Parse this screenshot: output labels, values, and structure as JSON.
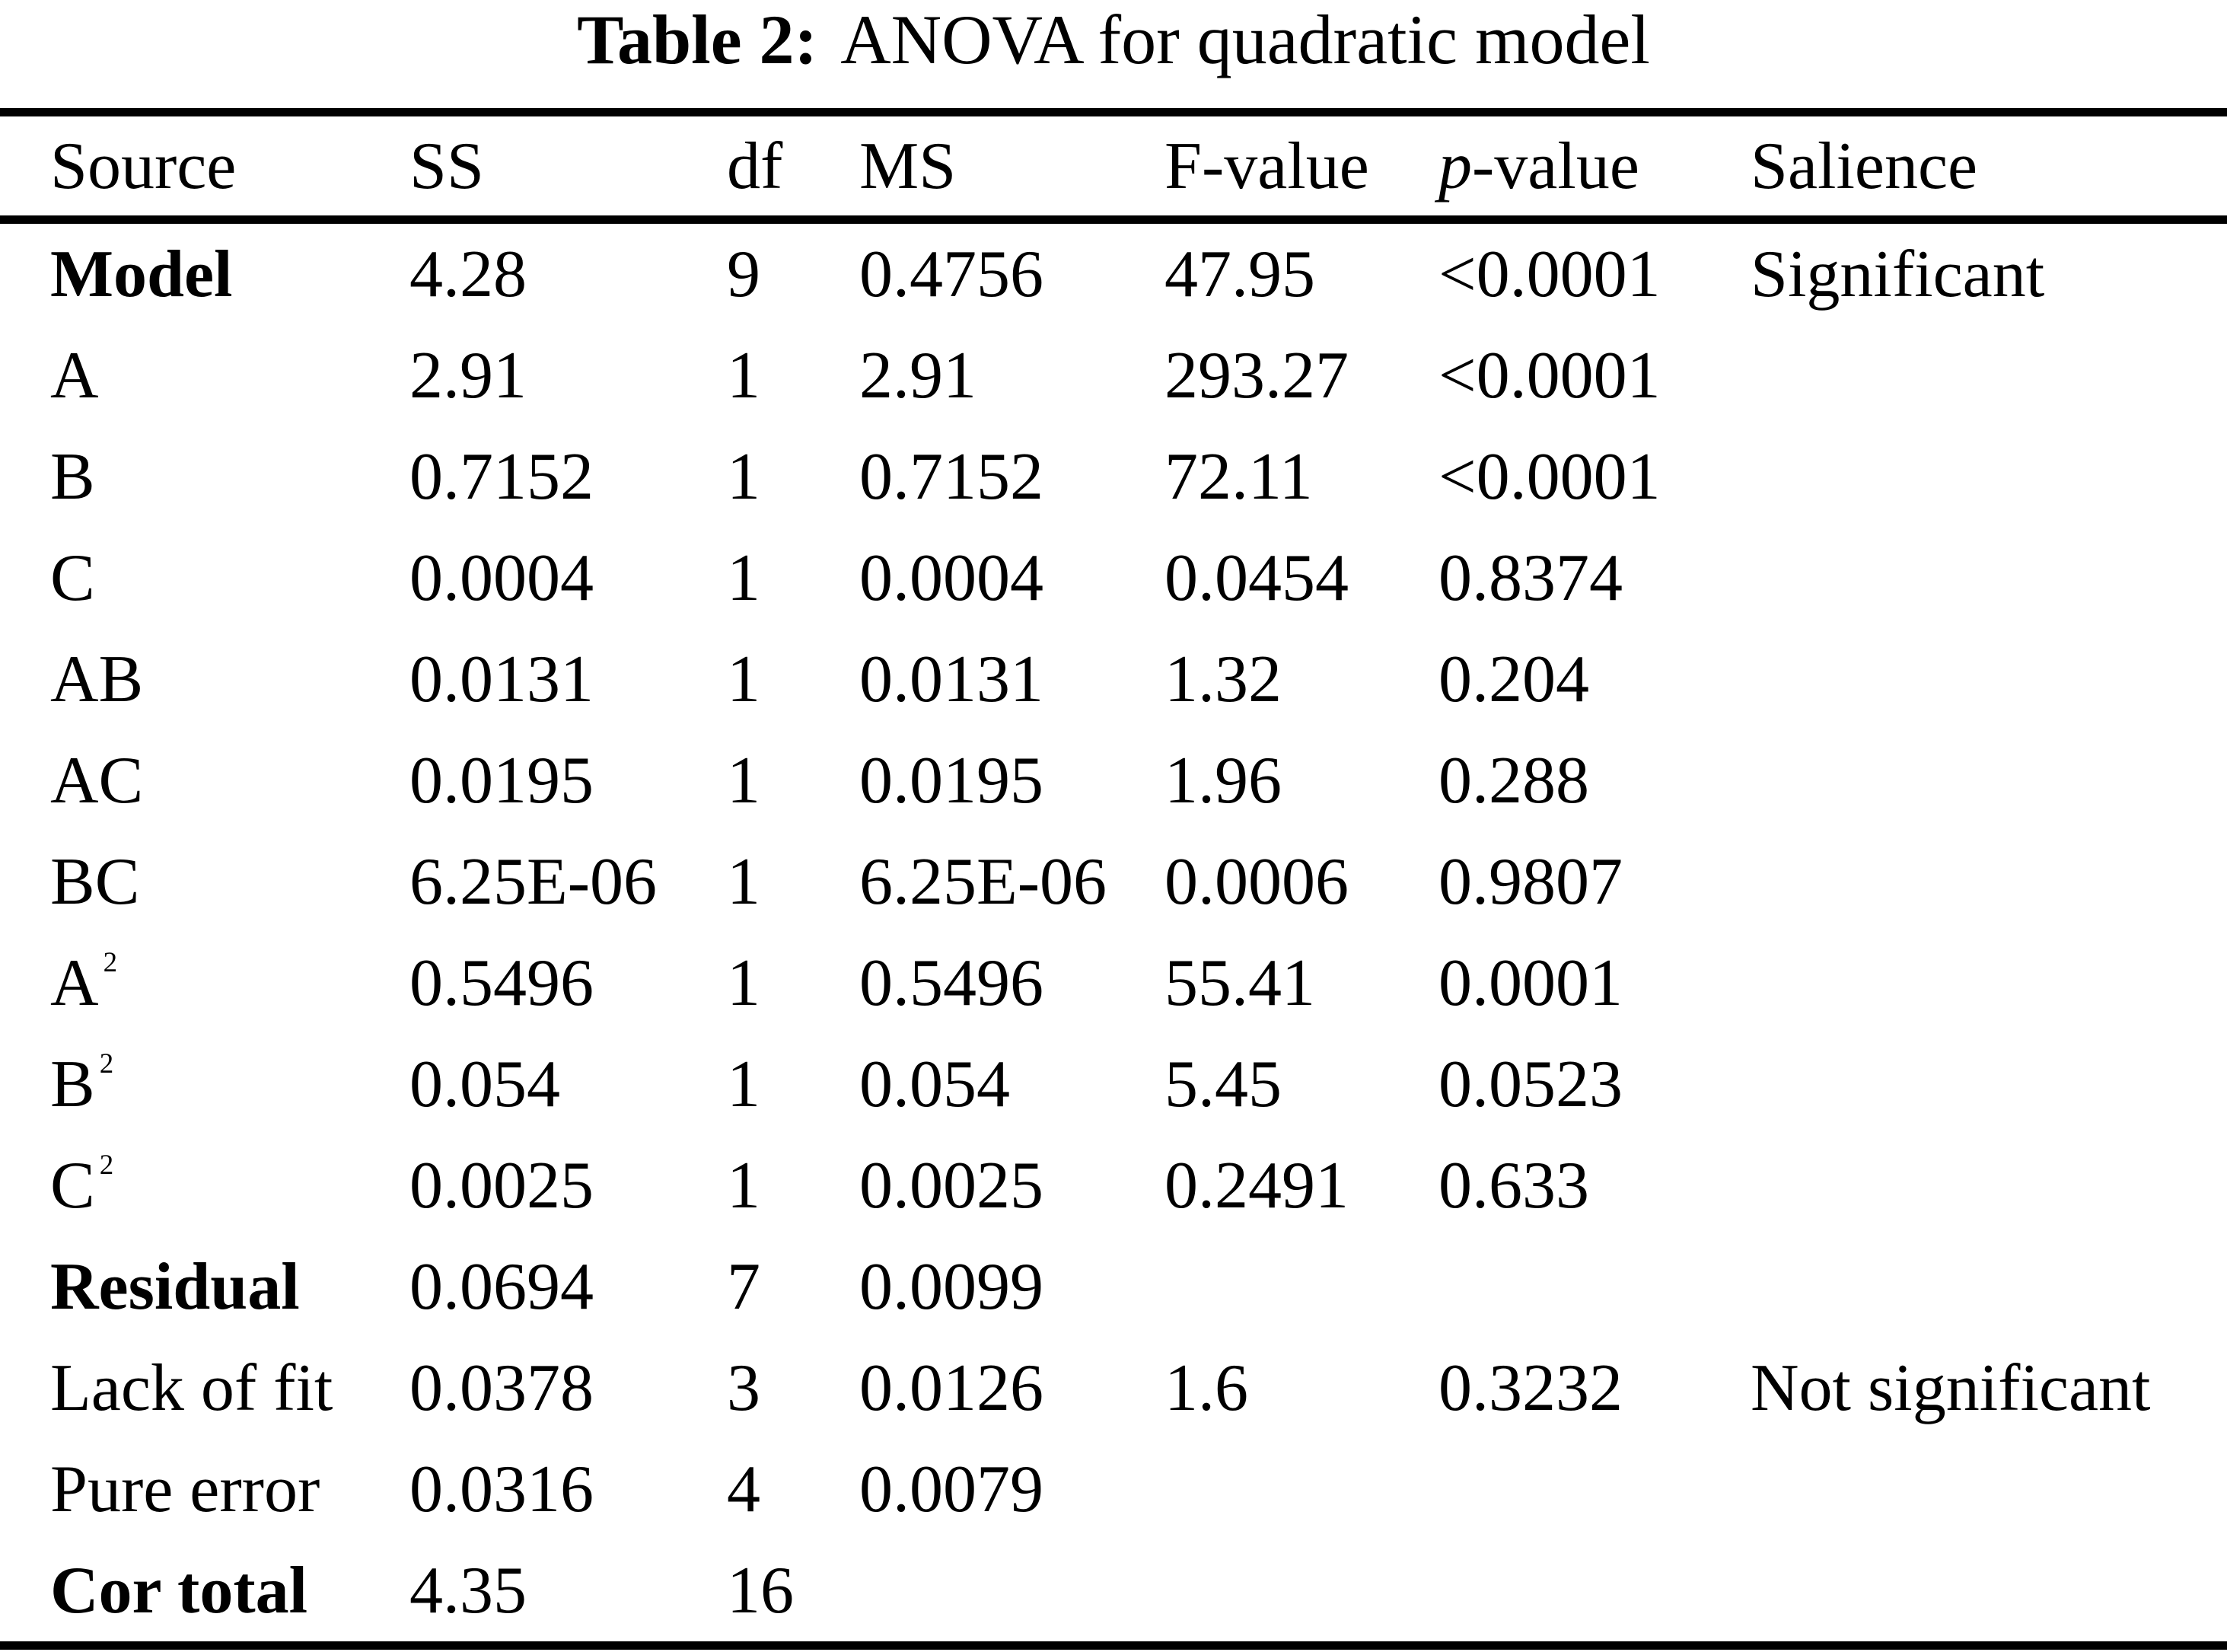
{
  "title": {
    "label": "Table 2:",
    "rest": "ANOVA for quadratic model"
  },
  "table": {
    "header": {
      "source": "Source",
      "ss": "SS",
      "df": "df",
      "ms": "MS",
      "f": "F-value",
      "p_letter": "p",
      "p_rest": "-value",
      "salience": "Salience"
    },
    "rows": [
      {
        "source": "Model",
        "sup": "",
        "bold": true,
        "ss": "4.28",
        "df": "9",
        "ms": "0.4756",
        "f": "47.95",
        "p": "<0.0001",
        "salience": "Significant"
      },
      {
        "source": "A",
        "sup": "",
        "bold": false,
        "ss": "2.91",
        "df": "1",
        "ms": "2.91",
        "f": "293.27",
        "p": "<0.0001",
        "salience": ""
      },
      {
        "source": "B",
        "sup": "",
        "bold": false,
        "ss": "0.7152",
        "df": "1",
        "ms": "0.7152",
        "f": "72.11",
        "p": "<0.0001",
        "salience": ""
      },
      {
        "source": "C",
        "sup": "",
        "bold": false,
        "ss": "0.0004",
        "df": "1",
        "ms": "0.0004",
        "f": "0.0454",
        "p": "0.8374",
        "salience": ""
      },
      {
        "source": "AB",
        "sup": "",
        "bold": false,
        "ss": "0.0131",
        "df": "1",
        "ms": "0.0131",
        "f": "1.32",
        "p": "0.204",
        "salience": ""
      },
      {
        "source": "AC",
        "sup": "",
        "bold": false,
        "ss": "0.0195",
        "df": "1",
        "ms": "0.0195",
        "f": "1.96",
        "p": "0.288",
        "salience": ""
      },
      {
        "source": "BC",
        "sup": "",
        "bold": false,
        "ss": "6.25E-06",
        "df": "1",
        "ms": "6.25E-06",
        "f": "0.0006",
        "p": "0.9807",
        "salience": ""
      },
      {
        "source": "A",
        "sup": "2",
        "bold": false,
        "ss": "0.5496",
        "df": "1",
        "ms": "0.5496",
        "f": "55.41",
        "p": "0.0001",
        "salience": ""
      },
      {
        "source": "B",
        "sup": "2",
        "bold": false,
        "ss": "0.054",
        "df": "1",
        "ms": "0.054",
        "f": "5.45",
        "p": "0.0523",
        "salience": ""
      },
      {
        "source": "C",
        "sup": "2",
        "bold": false,
        "ss": "0.0025",
        "df": "1",
        "ms": "0.0025",
        "f": "0.2491",
        "p": "0.633",
        "salience": ""
      },
      {
        "source": "Residual",
        "sup": "",
        "bold": true,
        "ss": "0.0694",
        "df": "7",
        "ms": "0.0099",
        "f": "",
        "p": "",
        "salience": ""
      },
      {
        "source": "Lack of fit",
        "sup": "",
        "bold": false,
        "ss": "0.0378",
        "df": "3",
        "ms": "0.0126",
        "f": "1.6",
        "p": "0.3232",
        "salience": "Not significant"
      },
      {
        "source": "Pure error",
        "sup": "",
        "bold": false,
        "ss": "0.0316",
        "df": "4",
        "ms": "0.0079",
        "f": "",
        "p": "",
        "salience": ""
      },
      {
        "source": "Cor total",
        "sup": "",
        "bold": true,
        "ss": "4.35",
        "df": "16",
        "ms": "",
        "f": "",
        "p": "",
        "salience": ""
      }
    ],
    "colors": {
      "text": "#000000",
      "background": "#ffffff",
      "rule": "#000000"
    }
  }
}
